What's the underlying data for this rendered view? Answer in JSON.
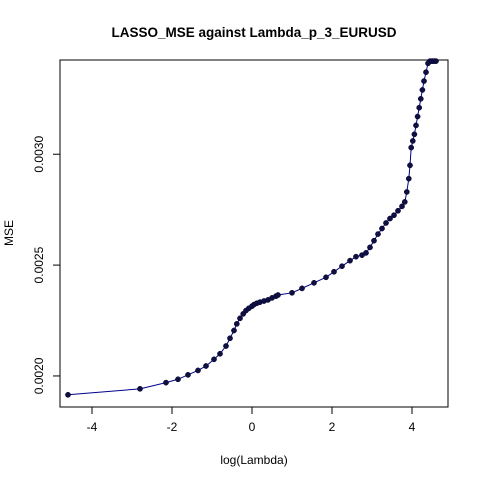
{
  "chart_data": {
    "type": "line",
    "title": "LASSO_MSE against Lambda_p_3_EURUSD",
    "xlabel": "log(Lambda)",
    "ylabel": "MSE",
    "xlim": [
      -4.8,
      4.9
    ],
    "ylim": [
      0.00186,
      0.003425
    ],
    "x_ticks": [
      -4,
      -2,
      0,
      2,
      4
    ],
    "x_tick_labels": [
      "-4",
      "-2",
      "0",
      "2",
      "4"
    ],
    "y_ticks": [
      0.002,
      0.0025,
      0.003
    ],
    "y_tick_labels": [
      "0.0020",
      "0.0025",
      "0.0030"
    ],
    "grid": false,
    "legend": "none",
    "colors": {
      "line": "#00008b",
      "points": "#101040"
    },
    "series": [
      {
        "values": [
          [
            -4.6,
            0.001915
          ],
          [
            -2.8,
            0.001942
          ],
          [
            -2.15,
            0.00197
          ],
          [
            -1.85,
            0.001985
          ],
          [
            -1.6,
            0.002005
          ],
          [
            -1.35,
            0.002025
          ],
          [
            -1.15,
            0.002045
          ],
          [
            -0.95,
            0.002075
          ],
          [
            -0.8,
            0.0021
          ],
          [
            -0.65,
            0.002135
          ],
          [
            -0.55,
            0.00217
          ],
          [
            -0.45,
            0.002205
          ],
          [
            -0.38,
            0.002235
          ],
          [
            -0.3,
            0.00226
          ],
          [
            -0.22,
            0.00228
          ],
          [
            -0.15,
            0.002295
          ],
          [
            -0.08,
            0.002305
          ],
          [
            0.0,
            0.002315
          ],
          [
            0.05,
            0.002322
          ],
          [
            0.12,
            0.002328
          ],
          [
            0.2,
            0.002333
          ],
          [
            0.3,
            0.002338
          ],
          [
            0.4,
            0.002343
          ],
          [
            0.5,
            0.002352
          ],
          [
            0.6,
            0.00236
          ],
          [
            0.65,
            0.002365
          ],
          [
            1.0,
            0.002375
          ],
          [
            1.25,
            0.002395
          ],
          [
            1.55,
            0.00242
          ],
          [
            1.85,
            0.002445
          ],
          [
            2.05,
            0.00247
          ],
          [
            2.25,
            0.002495
          ],
          [
            2.45,
            0.00252
          ],
          [
            2.6,
            0.002538
          ],
          [
            2.75,
            0.002545
          ],
          [
            2.85,
            0.002555
          ],
          [
            2.95,
            0.00258
          ],
          [
            3.05,
            0.00261
          ],
          [
            3.15,
            0.00264
          ],
          [
            3.25,
            0.002665
          ],
          [
            3.35,
            0.00269
          ],
          [
            3.45,
            0.00271
          ],
          [
            3.55,
            0.002725
          ],
          [
            3.65,
            0.002745
          ],
          [
            3.75,
            0.002765
          ],
          [
            3.82,
            0.002785
          ],
          [
            3.87,
            0.00283
          ],
          [
            3.92,
            0.00289
          ],
          [
            3.95,
            0.00295
          ],
          [
            3.98,
            0.00303
          ],
          [
            4.02,
            0.00306
          ],
          [
            4.06,
            0.00309
          ],
          [
            4.1,
            0.00313
          ],
          [
            4.14,
            0.00317
          ],
          [
            4.18,
            0.00321
          ],
          [
            4.22,
            0.00325
          ],
          [
            4.26,
            0.00329
          ],
          [
            4.3,
            0.00333
          ],
          [
            4.35,
            0.00337
          ],
          [
            4.4,
            0.00341
          ],
          [
            4.45,
            0.00342
          ],
          [
            4.5,
            0.00342
          ],
          [
            4.55,
            0.00342
          ],
          [
            4.6,
            0.00342
          ]
        ]
      }
    ]
  }
}
